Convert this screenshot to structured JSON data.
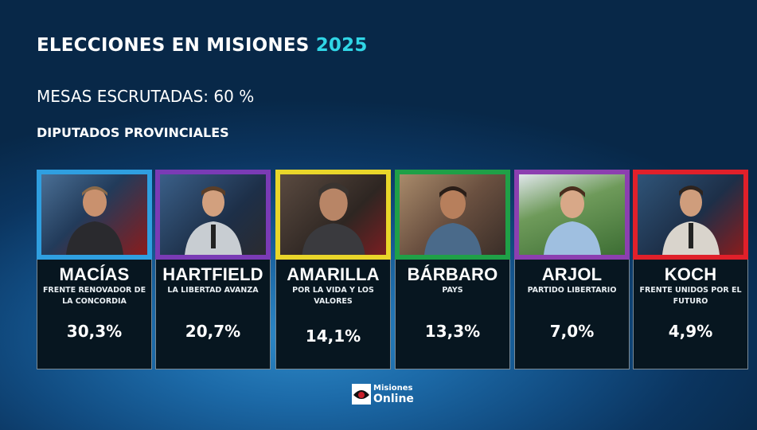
{
  "header": {
    "title": "ELECCIONES EN MISIONES",
    "year": "2025",
    "subtitle": "MESAS ESCRUTADAS: 60 %",
    "section": "DIPUTADOS PROVINCIALES"
  },
  "candidates": [
    {
      "name": "MACÍAS",
      "party": "FRENTE RENOVADOR DE LA CONCORDIA",
      "percent": "30,3%",
      "color": "#2f9fe0"
    },
    {
      "name": "HARTFIELD",
      "party": "LA LIBERTAD AVANZA",
      "percent": "20,7%",
      "color": "#7a3bb5"
    },
    {
      "name": "AMARILLA",
      "party": "POR LA VIDA Y LOS VALORES",
      "percent": "14,1%",
      "color": "#e9d62a"
    },
    {
      "name": "BÁRBARO",
      "party": "PAYS",
      "percent": "13,3%",
      "color": "#1fa047"
    },
    {
      "name": "ARJOL",
      "party": "PARTIDO LIBERTARIO",
      "percent": "7,0%",
      "color": "#8c3fb0"
    },
    {
      "name": "KOCH",
      "party": "FRENTE UNIDOS POR EL FUTURO",
      "percent": "4,9%",
      "color": "#e0202a"
    }
  ],
  "logo": {
    "line1": "Misiones",
    "line2": "Online"
  }
}
